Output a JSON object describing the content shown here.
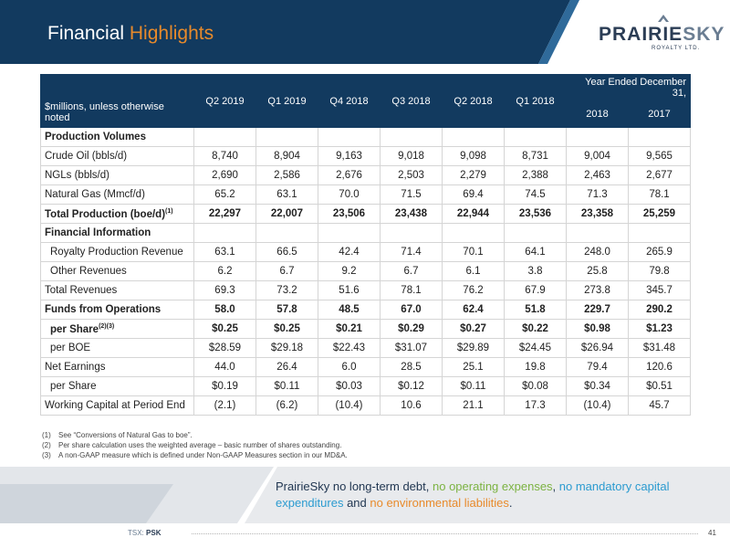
{
  "header": {
    "title_main": "Financial",
    "title_accent": "Highlights",
    "logo_prairie": "PRAIRIE",
    "logo_sky": "SKY",
    "logo_sub": "ROYALTY LTD."
  },
  "table": {
    "corner_label": "$millions, unless otherwise noted",
    "group_label": "Year Ended December 31,",
    "quarters": [
      "Q2 2019",
      "Q1 2019",
      "Q4 2018",
      "Q3 2018",
      "Q2 2018",
      "Q1 2018"
    ],
    "years": [
      "2018",
      "2017"
    ],
    "sections": {
      "production": "Production Volumes",
      "financial": "Financial Information"
    },
    "rows": {
      "crude": {
        "label": "Crude Oil (bbls/d)",
        "values": [
          "8,740",
          "8,904",
          "9,163",
          "9,018",
          "9,098",
          "8,731",
          "9,004",
          "9,565"
        ]
      },
      "ngl": {
        "label": "NGLs (bbls/d)",
        "values": [
          "2,690",
          "2,586",
          "2,676",
          "2,503",
          "2,279",
          "2,388",
          "2,463",
          "2,677"
        ]
      },
      "gas": {
        "label": "Natural Gas (Mmcf/d)",
        "values": [
          "65.2",
          "63.1",
          "70.0",
          "71.5",
          "69.4",
          "74.5",
          "71.3",
          "78.1"
        ]
      },
      "total_prod": {
        "label": "Total Production (boe/d)",
        "sup": "(1)",
        "values": [
          "22,297",
          "22,007",
          "23,506",
          "23,438",
          "22,944",
          "23,536",
          "23,358",
          "25,259"
        ]
      },
      "royalty_rev": {
        "label": "Royalty Production Revenue",
        "values": [
          "63.1",
          "66.5",
          "42.4",
          "71.4",
          "70.1",
          "64.1",
          "248.0",
          "265.9"
        ]
      },
      "other_rev": {
        "label": "Other Revenues",
        "values": [
          "6.2",
          "6.7",
          "9.2",
          "6.7",
          "6.1",
          "3.8",
          "25.8",
          "79.8"
        ]
      },
      "total_rev": {
        "label": "Total Revenues",
        "values": [
          "69.3",
          "73.2",
          "51.6",
          "78.1",
          "76.2",
          "67.9",
          "273.8",
          "345.7"
        ]
      },
      "ffo": {
        "label": "Funds from Operations",
        "values": [
          "58.0",
          "57.8",
          "48.5",
          "67.0",
          "62.4",
          "51.8",
          "229.7",
          "290.2"
        ]
      },
      "ffo_share": {
        "label": "per Share",
        "sup": "(2)(3)",
        "values": [
          "$0.25",
          "$0.25",
          "$0.21",
          "$0.29",
          "$0.27",
          "$0.22",
          "$0.98",
          "$1.23"
        ]
      },
      "ffo_boe": {
        "label": "per BOE",
        "values": [
          "$28.59",
          "$29.18",
          "$22.43",
          "$31.07",
          "$29.89",
          "$24.45",
          "$26.94",
          "$31.48"
        ]
      },
      "net": {
        "label": "Net Earnings",
        "values": [
          "44.0",
          "26.4",
          "6.0",
          "28.5",
          "25.1",
          "19.8",
          "79.4",
          "120.6"
        ]
      },
      "net_share": {
        "label": "per Share",
        "values": [
          "$0.19",
          "$0.11",
          "$0.03",
          "$0.12",
          "$0.11",
          "$0.08",
          "$0.34",
          "$0.51"
        ]
      },
      "wc": {
        "label": "Working Capital at Period End",
        "values": [
          "(2.1)",
          "(6.2)",
          "(10.4)",
          "10.6",
          "21.1",
          "17.3",
          "(10.4)",
          "45.7"
        ]
      }
    }
  },
  "footnotes": [
    {
      "n": "(1)",
      "text": "See “Conversions of Natural Gas to boe”."
    },
    {
      "n": "(2)",
      "text": "Per  share calculation uses the weighted average – basic number of shares outstanding."
    },
    {
      "n": "(3)",
      "text": "A non-GAAP measure which is defined under Non-GAAP Measures section in our MD&A."
    }
  ],
  "tagline": {
    "p1": "PrairieSky ",
    "p2": "no long-term debt",
    "p3": ", ",
    "p4": "no operating expenses",
    "p5": ", ",
    "p6": "no mandatory capital expenditures",
    "p7": " and ",
    "p8": "no environmental liabilities",
    "p9": "."
  },
  "footer": {
    "tsx_label": "TSX: ",
    "tsx_ticker": "PSK",
    "page": "41"
  }
}
